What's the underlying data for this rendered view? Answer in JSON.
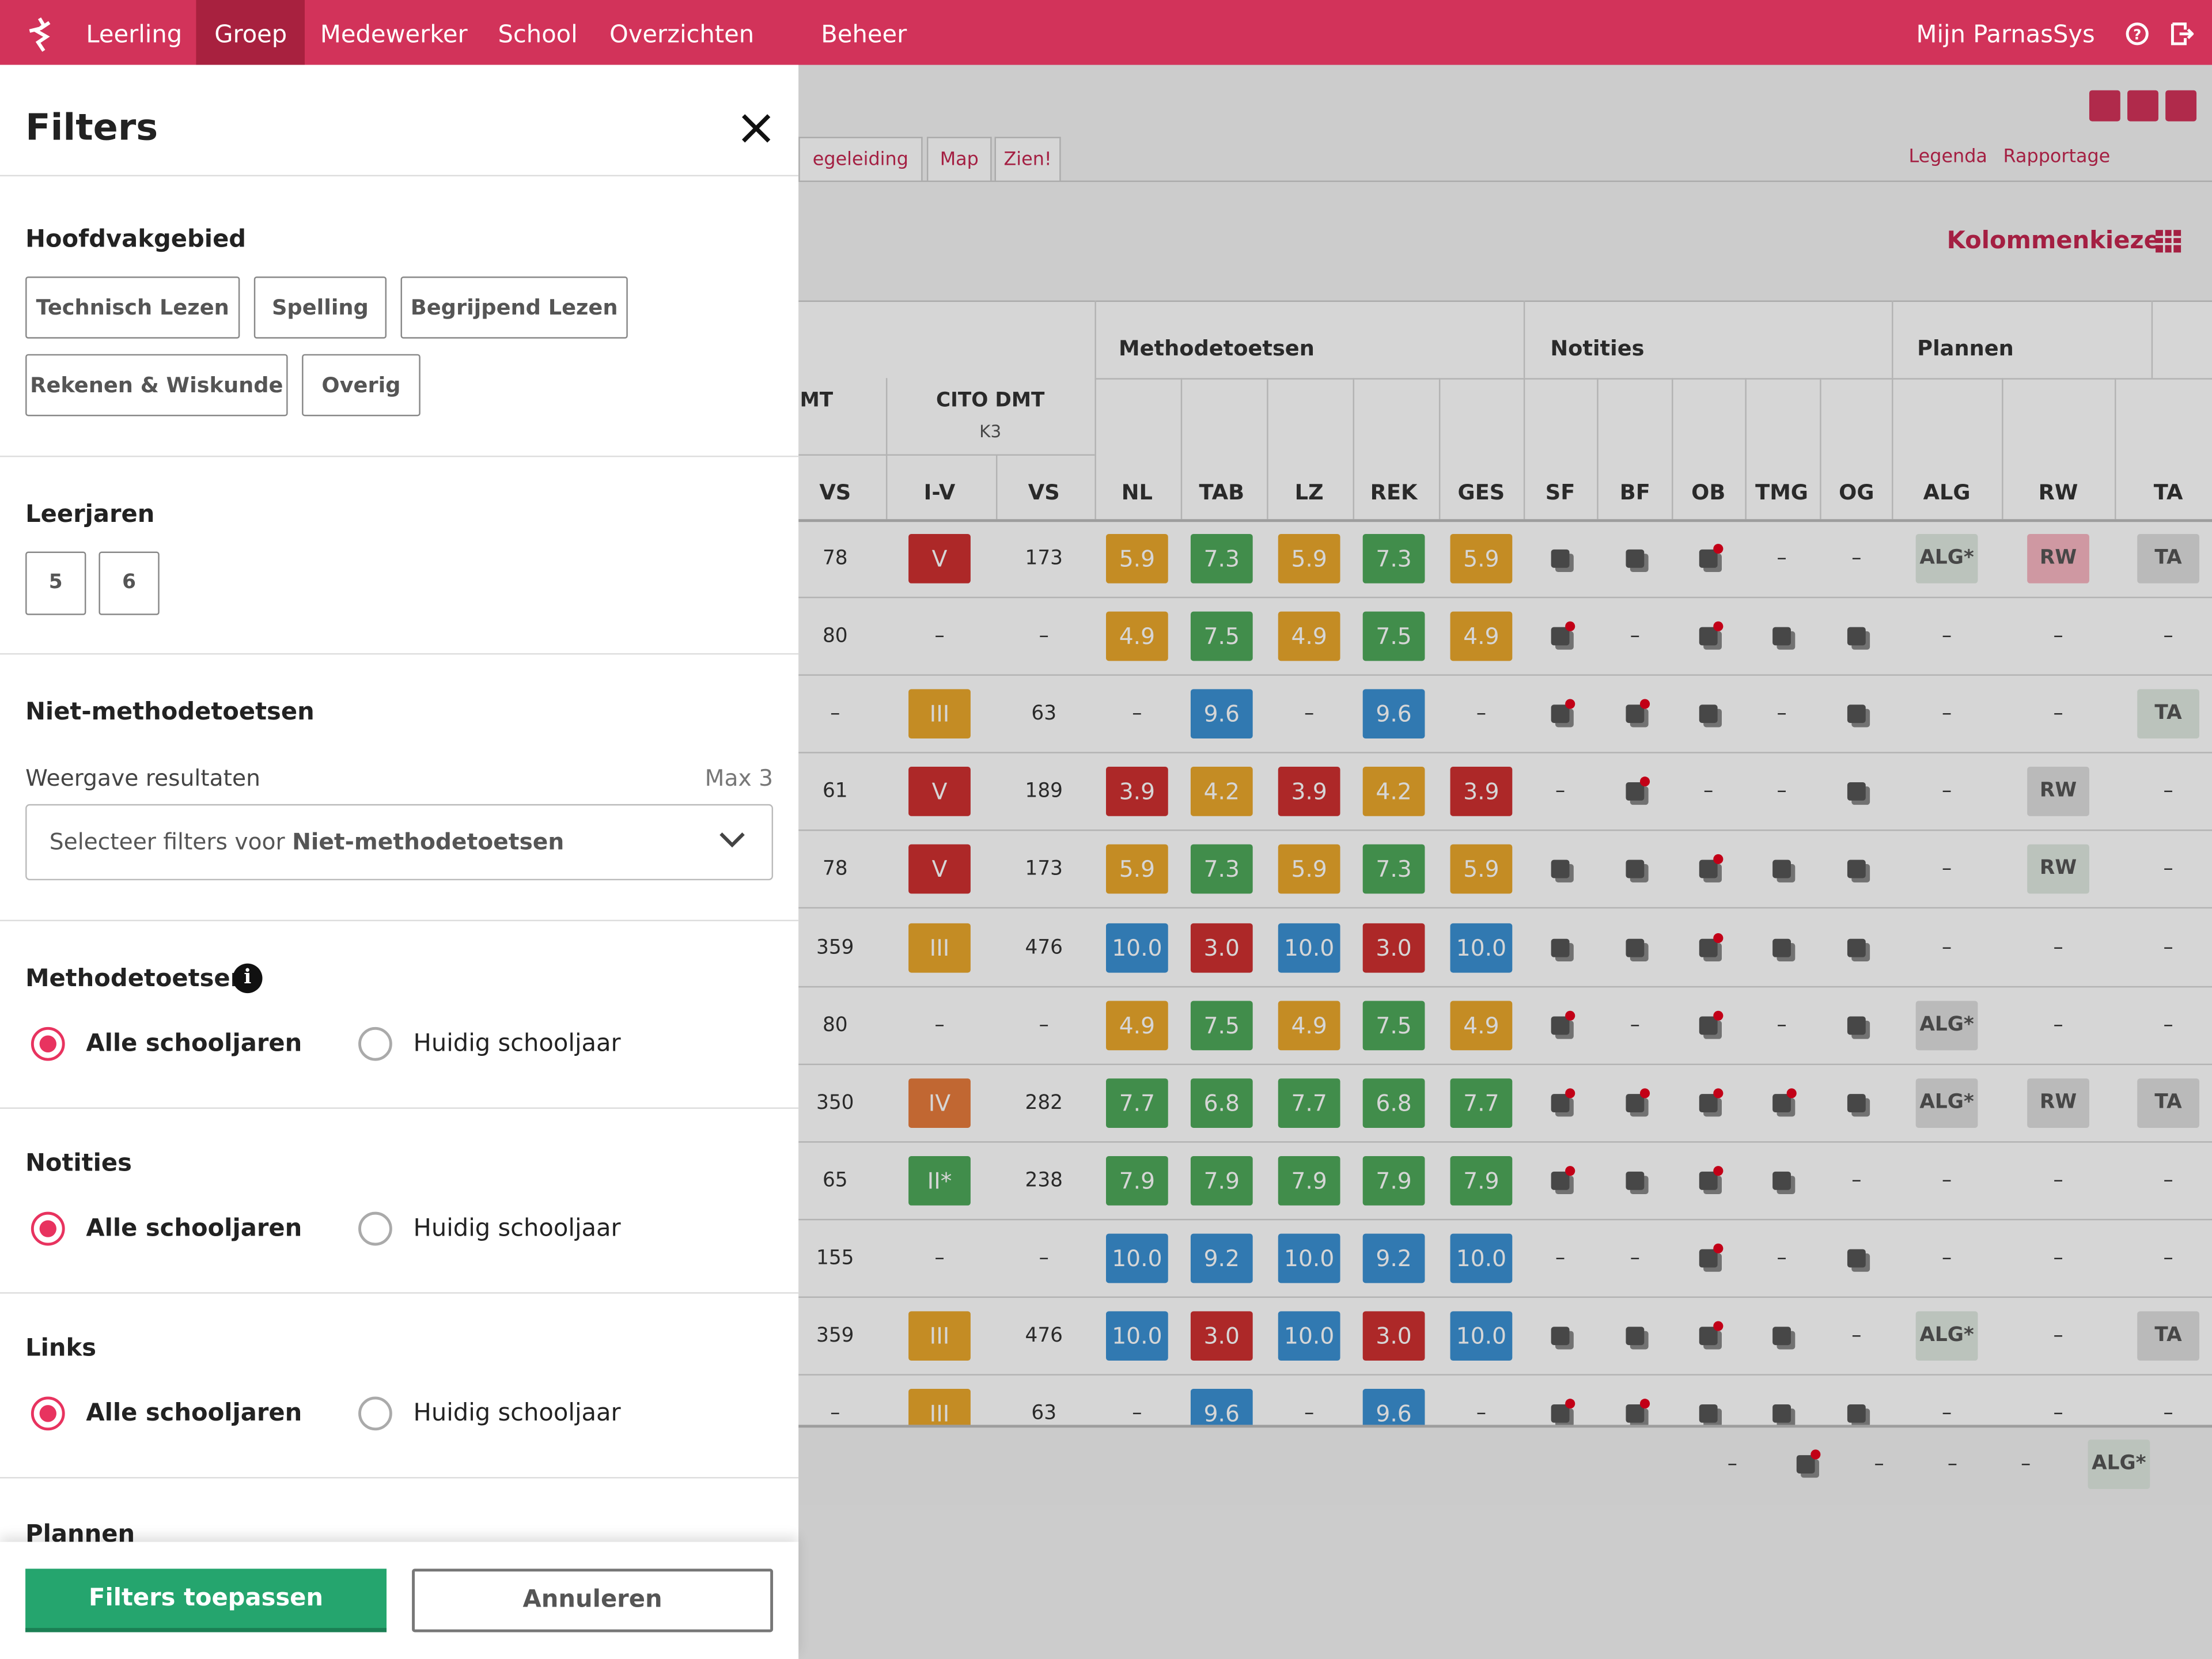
{
  "nav": {
    "items": [
      "Leerling",
      "Groep",
      "Medewerker",
      "School",
      "Overzichten",
      "Beheer"
    ],
    "active": 1,
    "user": "Mijn ParnasSys"
  },
  "toolbar": {
    "tabs": [
      "egeleiding",
      "Map",
      "Zien!"
    ],
    "links": [
      "Legenda",
      "Rapportage"
    ],
    "column_picker": "Kolommenkiezer"
  },
  "table": {
    "groups": [
      "Methodetoetsen",
      "Notities",
      "Plannen"
    ],
    "sub_headers": [
      "MT",
      "CITO DMT",
      "K3"
    ],
    "columns": [
      "VS",
      "I-V",
      "VS",
      "NL",
      "TAB",
      "LZ",
      "REK",
      "GES",
      "SF",
      "BF",
      "OB",
      "TMG",
      "OG",
      "ALG",
      "RW",
      "TA"
    ],
    "rows": [
      [
        "78",
        {
          "text": "V",
          "color": "#cf3030"
        },
        "173",
        {
          "text": "5.9",
          "color": "#eaa72c"
        },
        {
          "text": "7.3",
          "color": "#4ea85a"
        },
        {
          "text": "5.9",
          "color": "#eaa72c"
        },
        {
          "text": "7.3",
          "color": "#4ea85a"
        },
        {
          "text": "5.9",
          "color": "#eaa72c"
        },
        null,
        null,
        null,
        "–",
        "–",
        {
          "text": "ALG*",
          "color": "#dfe9e1"
        },
        {
          "text": "RW",
          "color": "#f7b6c1"
        },
        {
          "text": "TA",
          "color": "#dedede"
        }
      ],
      [
        "80",
        "–",
        "–",
        {
          "text": "4.9",
          "color": "#eaa72c"
        },
        {
          "text": "7.5",
          "color": "#4ea85a"
        },
        {
          "text": "4.9",
          "color": "#eaa72c"
        },
        {
          "text": "7.5",
          "color": "#4ea85a"
        },
        {
          "text": "4.9",
          "color": "#eaa72c"
        },
        null,
        "–",
        null,
        null,
        null,
        "–",
        "–",
        "–"
      ],
      [
        "–",
        {
          "text": "III",
          "color": "#eaa72c"
        },
        "63",
        "–",
        {
          "text": "9.6",
          "color": "#3b91d3"
        },
        "–",
        {
          "text": "9.6",
          "color": "#3b91d3"
        },
        "–",
        null,
        null,
        null,
        "–",
        null,
        "–",
        "–",
        {
          "text": "TA",
          "color": "#dfe9e1"
        }
      ],
      [
        "61",
        {
          "text": "V",
          "color": "#cf3030"
        },
        "189",
        {
          "text": "3.9",
          "color": "#cf3030"
        },
        {
          "text": "4.2",
          "color": "#eaa72c"
        },
        {
          "text": "3.9",
          "color": "#cf3030"
        },
        {
          "text": "4.2",
          "color": "#eaa72c"
        },
        {
          "text": "3.9",
          "color": "#cf3030"
        },
        "–",
        null,
        "–",
        "–",
        null,
        "–",
        {
          "text": "RW",
          "color": "#dedede"
        },
        "–"
      ],
      [
        "78",
        {
          "text": "V",
          "color": "#cf3030"
        },
        "173",
        {
          "text": "5.9",
          "color": "#eaa72c"
        },
        {
          "text": "7.3",
          "color": "#4ea85a"
        },
        {
          "text": "5.9",
          "color": "#eaa72c"
        },
        {
          "text": "7.3",
          "color": "#4ea85a"
        },
        {
          "text": "5.9",
          "color": "#eaa72c"
        },
        null,
        null,
        null,
        null,
        null,
        "–",
        {
          "text": "RW",
          "color": "#dfe9e1"
        },
        "–"
      ],
      [
        "359",
        {
          "text": "III",
          "color": "#eaa72c"
        },
        "476",
        {
          "text": "10.0",
          "color": "#3b91d3"
        },
        {
          "text": "3.0",
          "color": "#cf3030"
        },
        {
          "text": "10.0",
          "color": "#3b91d3"
        },
        {
          "text": "3.0",
          "color": "#cf3030"
        },
        {
          "text": "10.0",
          "color": "#3b91d3"
        },
        null,
        null,
        null,
        null,
        null,
        "–",
        "–",
        "–"
      ],
      [
        "80",
        "–",
        "–",
        {
          "text": "4.9",
          "color": "#eaa72c"
        },
        {
          "text": "7.5",
          "color": "#4ea85a"
        },
        {
          "text": "4.9",
          "color": "#eaa72c"
        },
        {
          "text": "7.5",
          "color": "#4ea85a"
        },
        {
          "text": "4.9",
          "color": "#eaa72c"
        },
        null,
        "–",
        null,
        "–",
        null,
        {
          "text": "ALG*",
          "color": "#dedede"
        },
        "–",
        "–"
      ],
      [
        "350",
        {
          "text": "IV",
          "color": "#e67b3c"
        },
        "282",
        {
          "text": "7.7",
          "color": "#4ea85a"
        },
        {
          "text": "6.8",
          "color": "#4ea85a"
        },
        {
          "text": "7.7",
          "color": "#4ea85a"
        },
        {
          "text": "6.8",
          "color": "#4ea85a"
        },
        {
          "text": "7.7",
          "color": "#4ea85a"
        },
        null,
        null,
        null,
        null,
        null,
        {
          "text": "ALG*",
          "color": "#dedede"
        },
        {
          "text": "RW",
          "color": "#dedede"
        },
        {
          "text": "TA",
          "color": "#dedede"
        }
      ],
      [
        "65",
        {
          "text": "II*",
          "color": "#4ea85a"
        },
        "238",
        {
          "text": "7.9",
          "color": "#4ea85a"
        },
        {
          "text": "7.9",
          "color": "#4ea85a"
        },
        {
          "text": "7.9",
          "color": "#4ea85a"
        },
        {
          "text": "7.9",
          "color": "#4ea85a"
        },
        {
          "text": "7.9",
          "color": "#4ea85a"
        },
        null,
        null,
        null,
        null,
        "–",
        "–",
        "–",
        "–"
      ],
      [
        "155",
        "–",
        "–",
        {
          "text": "10.0",
          "color": "#3b91d3"
        },
        {
          "text": "9.2",
          "color": "#3b91d3"
        },
        {
          "text": "10.0",
          "color": "#3b91d3"
        },
        {
          "text": "9.2",
          "color": "#3b91d3"
        },
        {
          "text": "10.0",
          "color": "#3b91d3"
        },
        "–",
        "–",
        null,
        "–",
        null,
        "–",
        "–",
        "–"
      ],
      [
        "359",
        {
          "text": "III",
          "color": "#eaa72c"
        },
        "476",
        {
          "text": "10.0",
          "color": "#3b91d3"
        },
        {
          "text": "3.0",
          "color": "#cf3030"
        },
        {
          "text": "10.0",
          "color": "#3b91d3"
        },
        {
          "text": "3.0",
          "color": "#cf3030"
        },
        {
          "text": "10.0",
          "color": "#3b91d3"
        },
        null,
        null,
        null,
        null,
        "–",
        {
          "text": "ALG*",
          "color": "#dfe9e1"
        },
        "–",
        {
          "text": "TA",
          "color": "#dedede"
        }
      ],
      [
        "–",
        {
          "text": "III",
          "color": "#eaa72c"
        },
        "63",
        "–",
        {
          "text": "9.6",
          "color": "#3b91d3"
        },
        "–",
        {
          "text": "9.6",
          "color": "#3b91d3"
        },
        "–",
        null,
        null,
        null,
        null,
        null,
        "–",
        "–",
        "–"
      ]
    ],
    "footer": [
      "–",
      null,
      "–",
      "–",
      "–",
      {
        "text": "ALG*",
        "color": "#dfe9e1"
      }
    ]
  },
  "filters": {
    "title": "Filters",
    "hoofdvak": {
      "title": "Hoofdvakgebied",
      "options": [
        "Technisch Lezen",
        "Spelling",
        "Begrijpend Lezen",
        "Rekenen & Wiskunde",
        "Overig"
      ]
    },
    "leerjaren": {
      "title": "Leerjaren",
      "options": [
        "5",
        "6"
      ]
    },
    "niet_methode": {
      "title": "Niet-methodetoetsen",
      "label": "Weergave resultaten",
      "hint": "Max 3",
      "placeholder": "Selecteer filters voor",
      "placeholder_bold": "Niet-methodetoetsen"
    },
    "radio_sections": [
      {
        "title": "Methodetoetsen",
        "choices": [
          "Alle schooljaren",
          "Huidig schooljaar"
        ],
        "selected": 0
      },
      {
        "title": "Notities",
        "choices": [
          "Alle schooljaren",
          "Huidig schooljaar"
        ],
        "selected": 0
      },
      {
        "title": "Links",
        "choices": [
          "Alle schooljaren",
          "Huidig schooljaar"
        ],
        "selected": 0
      }
    ],
    "next_section": "Plannen",
    "apply": "Filters toepassen",
    "cancel": "Annuleren"
  }
}
